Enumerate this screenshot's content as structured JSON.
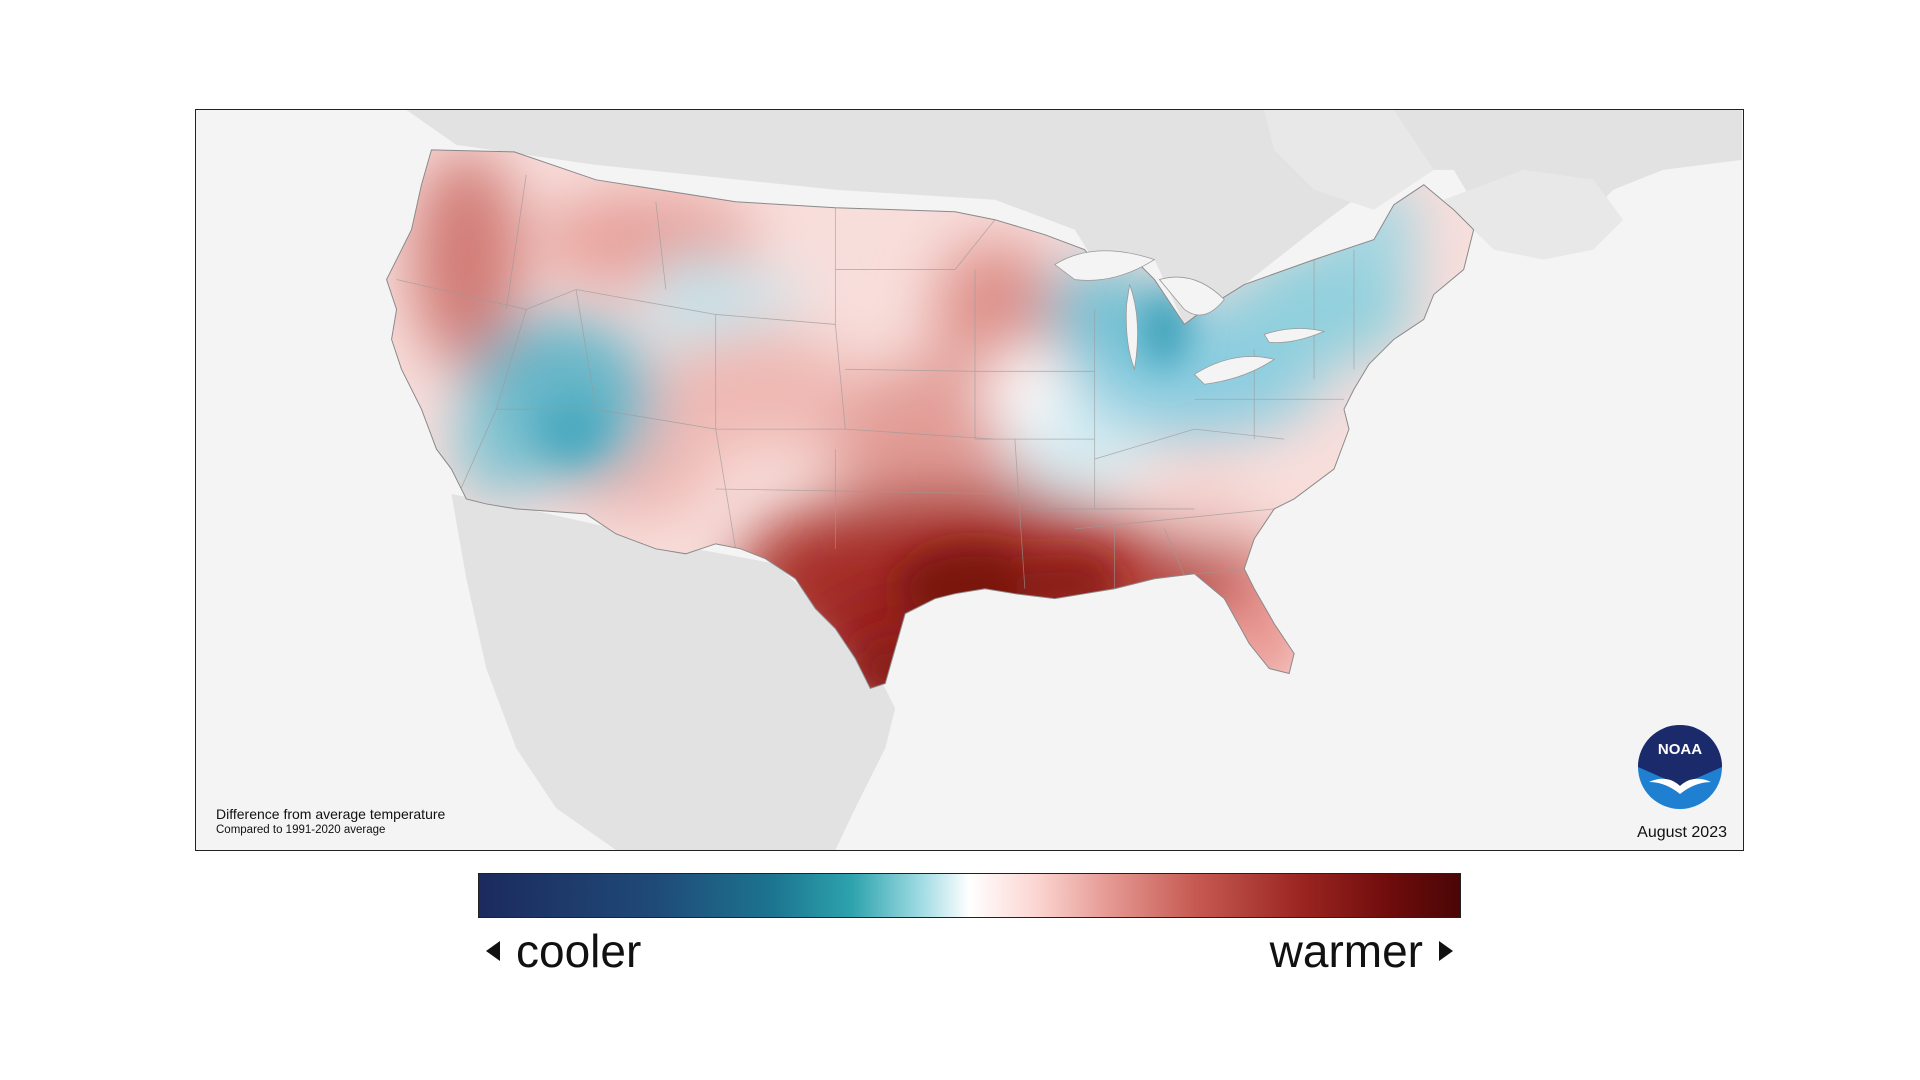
{
  "map": {
    "caption_title": "Difference from average temperature",
    "caption_subtitle": "Compared to 1991-2020 average",
    "date": "August 2023",
    "logo_text": "NOAA"
  },
  "legend": {
    "cooler_label": "cooler",
    "warmer_label": "warmer",
    "colors": [
      "#1c2a5e",
      "#1c7590",
      "#9fdbe3",
      "#ffffff",
      "#e69a94",
      "#9a2420",
      "#4a0606"
    ]
  },
  "colors": {
    "cooler": "#3aa9c0",
    "warmer": "#a8201c",
    "land_outside": "#e2e2e2",
    "water": "#f4f4f4"
  }
}
